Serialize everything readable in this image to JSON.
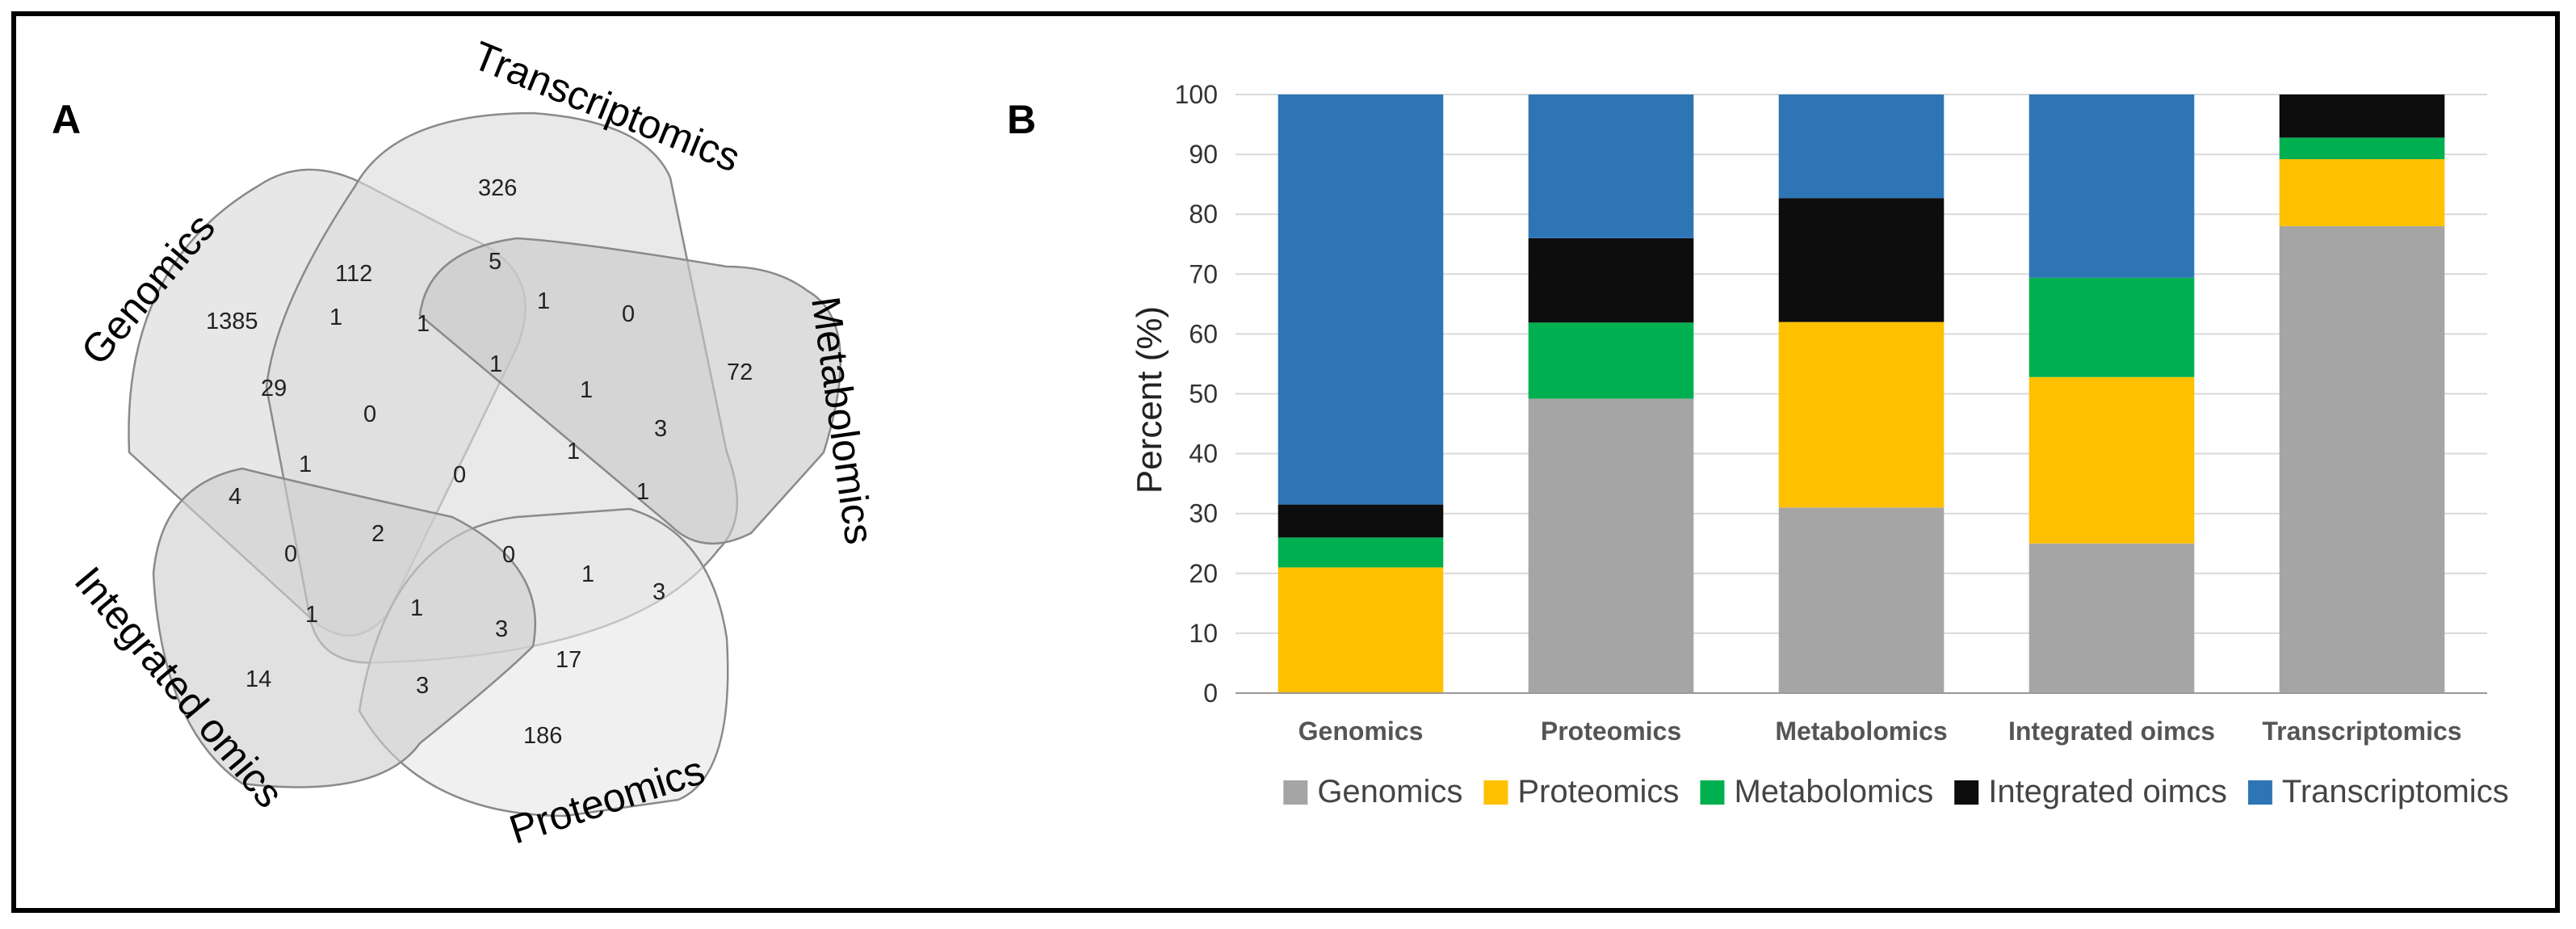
{
  "panels": {
    "a_label": "A",
    "b_label": "B"
  },
  "venn": {
    "sets": [
      {
        "name": "Genomics",
        "shade": "#d9d9d9"
      },
      {
        "name": "Transcriptomics",
        "shade": "#dcdcdc"
      },
      {
        "name": "Metabolomics",
        "shade": "#c8c8c8"
      },
      {
        "name": "Proteomics",
        "shade": "#e6e6e6"
      },
      {
        "name": "Integrated omics",
        "shade": "#cfcfcf"
      }
    ],
    "region_counts": [
      "1385",
      "326",
      "72",
      "186",
      "14",
      "112",
      "29",
      "5",
      "1",
      "0",
      "1",
      "1",
      "0",
      "1",
      "1",
      "3",
      "4",
      "1",
      "0",
      "1",
      "0",
      "2",
      "0",
      "1",
      "1",
      "1",
      "3",
      "1",
      "3",
      "17",
      "3"
    ]
  },
  "chart_data": {
    "type": "bar",
    "stacked": true,
    "title": "",
    "xlabel": "",
    "ylabel": "Percent (%)",
    "ylim": [
      0,
      100
    ],
    "yticks": [
      0,
      10,
      20,
      30,
      40,
      50,
      60,
      70,
      80,
      90,
      100
    ],
    "grid": true,
    "legend_position": "bottom",
    "categories": [
      "Genomics",
      "Proteomics",
      "Metabolomics",
      "Integrated oimcs",
      "Transcriptomics"
    ],
    "series": [
      {
        "name": "Genomics",
        "color": "#a5a5a5",
        "values": [
          0,
          49.2,
          31.0,
          25.0,
          78.0
        ]
      },
      {
        "name": "Proteomics",
        "color": "#ffc000",
        "values": [
          21.0,
          0,
          31.0,
          27.8,
          11.2
        ]
      },
      {
        "name": "Metabolomics",
        "color": "#00b050",
        "values": [
          5.0,
          12.7,
          0,
          16.6,
          3.6
        ]
      },
      {
        "name": "Integrated oimcs",
        "color": "#0d0d0d",
        "values": [
          5.5,
          14.1,
          20.7,
          0,
          7.2
        ]
      },
      {
        "name": "Transcriptomics",
        "color": "#2e75b6",
        "values": [
          68.5,
          24.0,
          17.3,
          30.6,
          0
        ]
      }
    ]
  }
}
